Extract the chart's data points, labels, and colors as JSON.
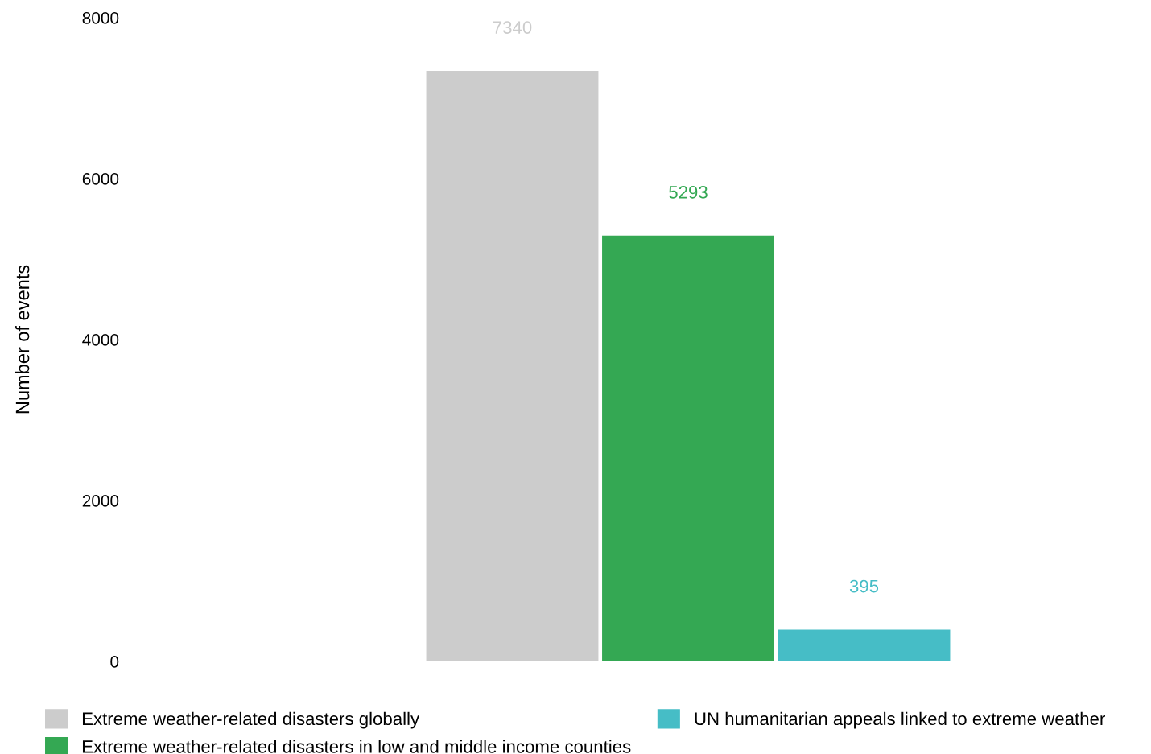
{
  "chart_data": {
    "type": "bar",
    "ylabel": "Number of events",
    "categories": [
      null
    ],
    "series": [
      {
        "name": "Extreme weather-related disasters globally",
        "color": "#cccccc",
        "values": [
          7340
        ]
      },
      {
        "name": "Extreme weather-related disasters in low and middle income counties",
        "color": "#34a853",
        "values": [
          5293
        ]
      },
      {
        "name": "UN humanitarian appeals linked to extreme weather",
        "color": "#46bdc6",
        "values": [
          395
        ]
      }
    ],
    "ylim": [
      0,
      8000
    ],
    "yticks": [
      0,
      2000,
      4000,
      6000,
      8000
    ],
    "grid": false,
    "data_labels": true,
    "legend": "bottom"
  }
}
